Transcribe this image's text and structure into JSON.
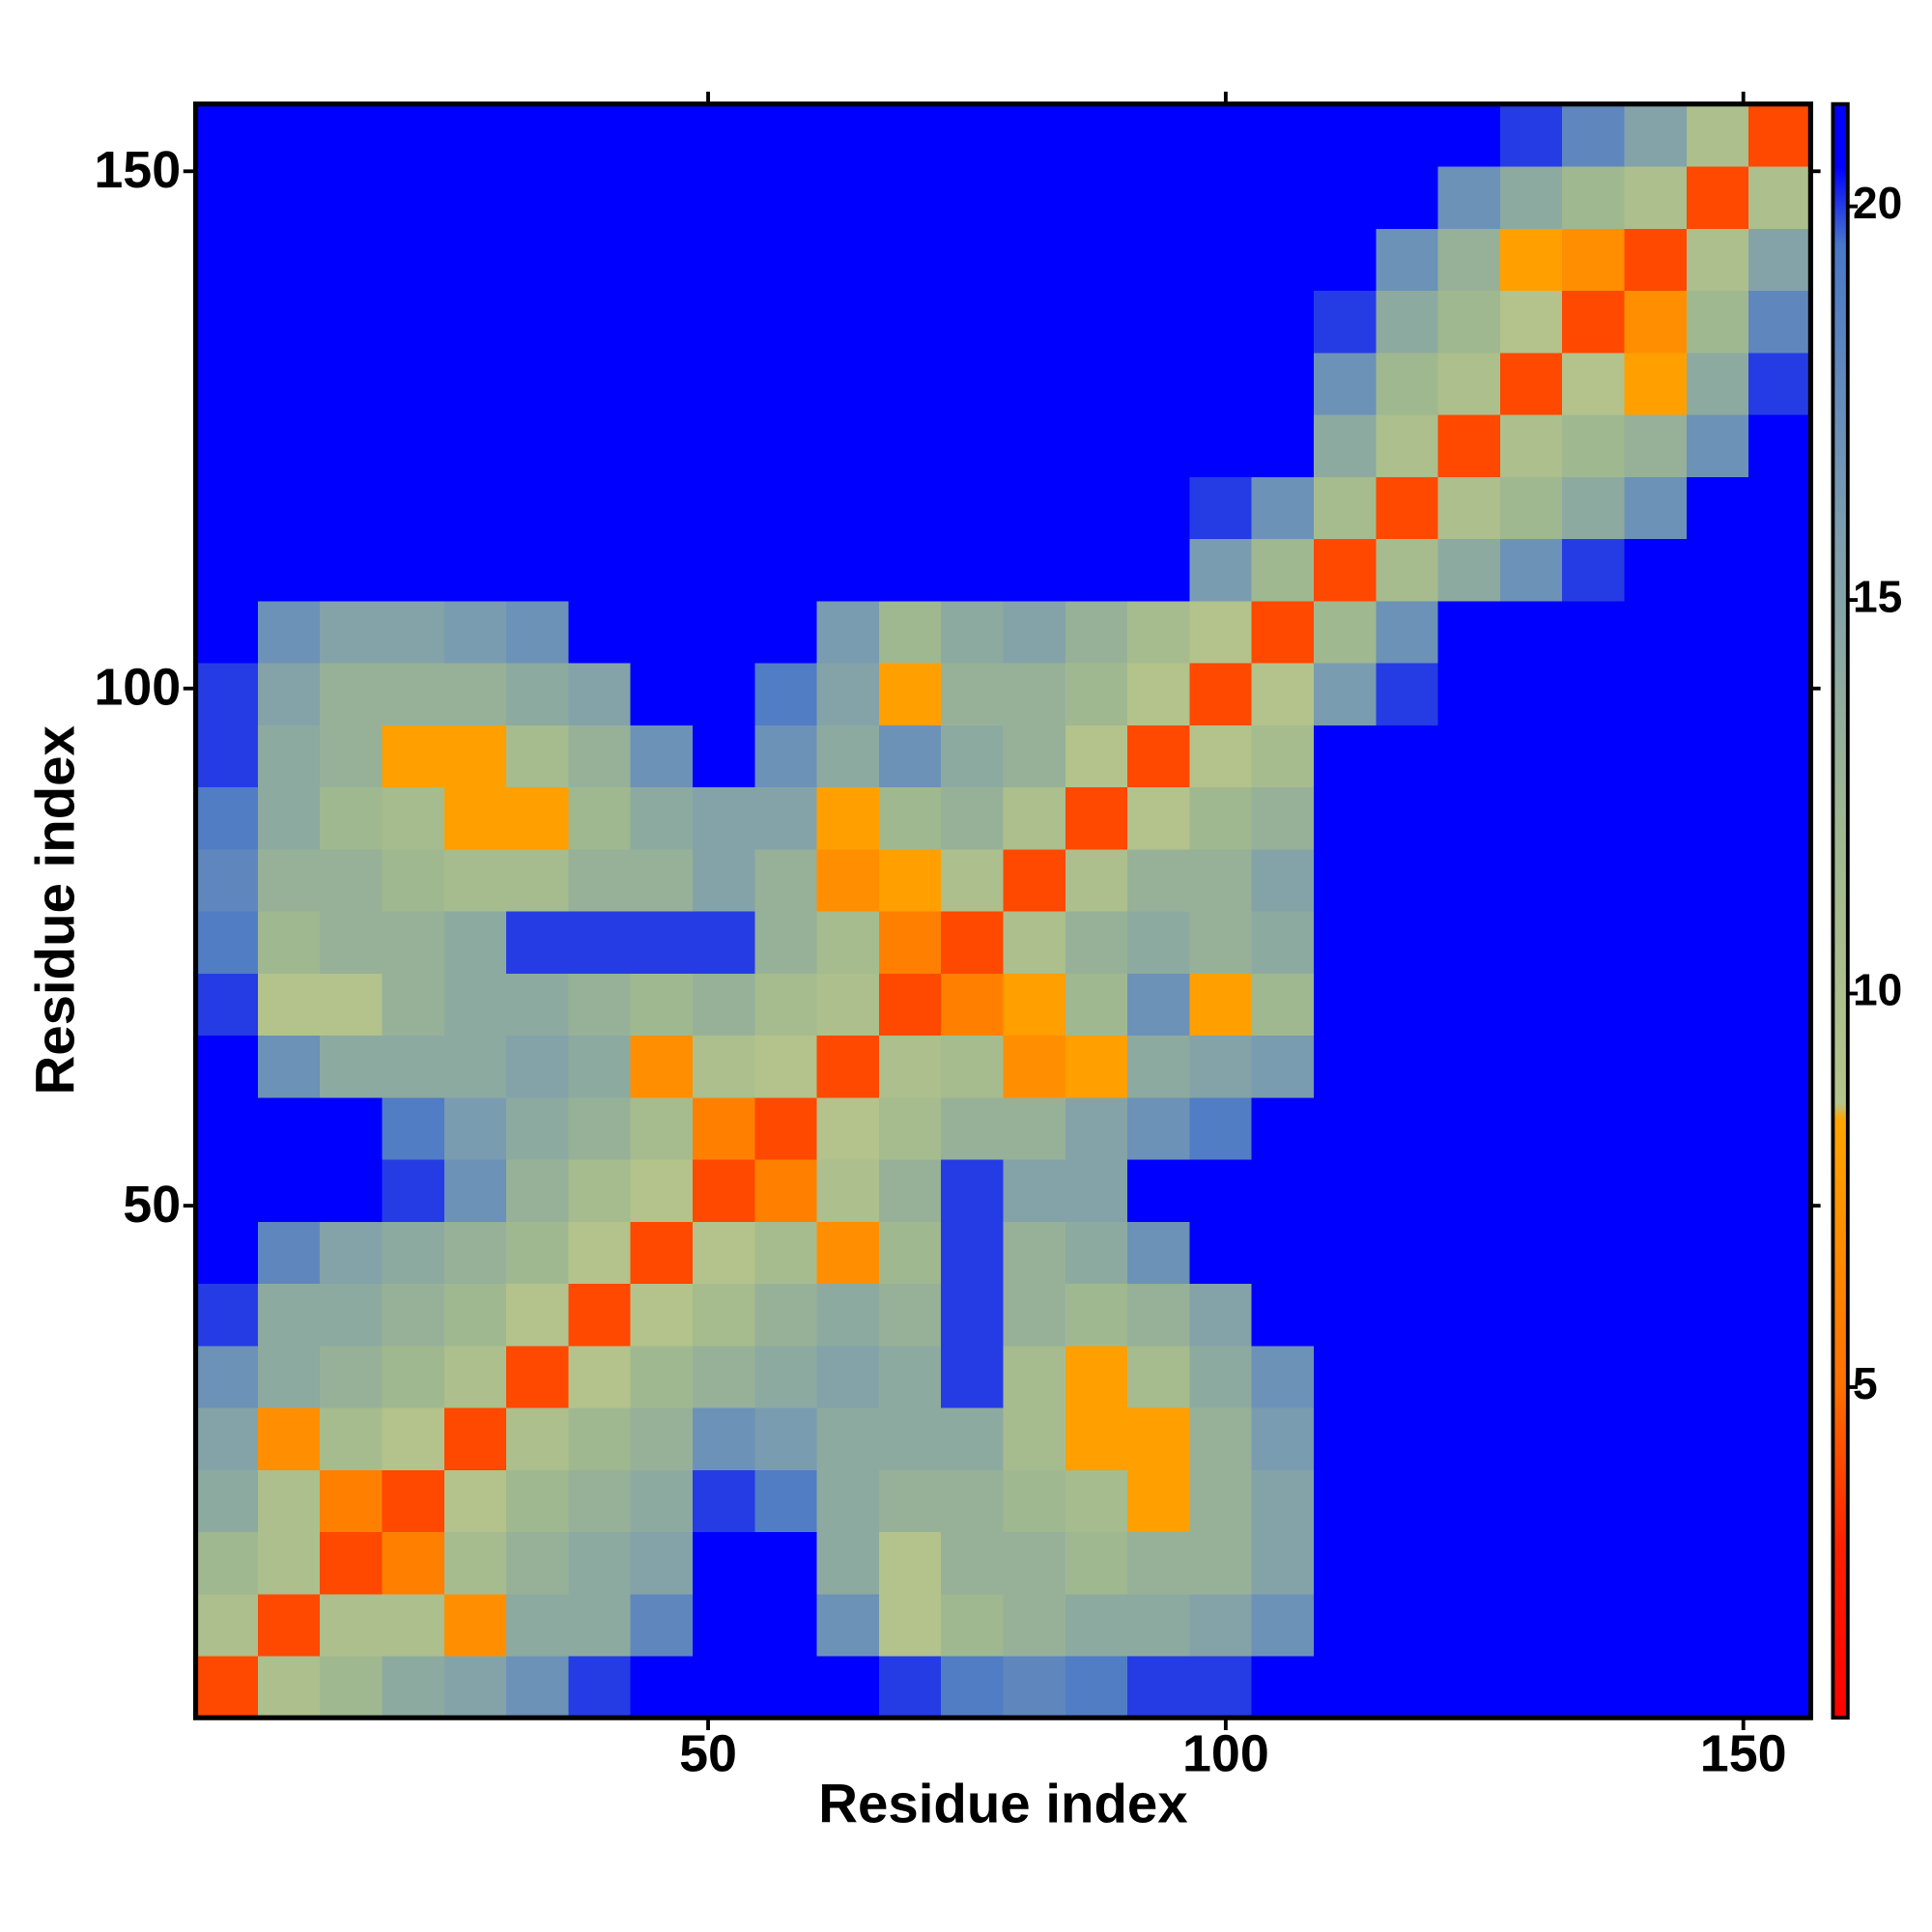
{
  "chart_data": {
    "type": "heatmap",
    "xlabel": "Residue index",
    "ylabel": "Residue index",
    "xlim": [
      0.5,
      156.5
    ],
    "ylim": [
      0.5,
      156.5
    ],
    "xticks": [
      50,
      100,
      150
    ],
    "yticks": [
      50,
      100,
      150
    ],
    "xbins": [
      0.5,
      6.5,
      12.5,
      18.5,
      24.5,
      30.5,
      36.5,
      42.5,
      48.5,
      54.5,
      60.5,
      66.5,
      72.5,
      78.5,
      84.5,
      90.5,
      96.5,
      102.5,
      108.5,
      114.5,
      120.5,
      126.5,
      132.5,
      138.5,
      144.5,
      150.5,
      156.5
    ],
    "ybins": [
      0.5,
      6.5,
      12.5,
      18.5,
      24.5,
      30.5,
      36.5,
      42.5,
      48.5,
      54.5,
      60.5,
      66.5,
      72.5,
      78.5,
      84.5,
      90.5,
      96.5,
      102.5,
      108.5,
      114.5,
      120.5,
      126.5,
      132.5,
      138.5,
      144.5,
      150.5,
      156.5
    ],
    "z": [
      [
        4,
        10,
        12,
        14,
        15,
        17,
        20,
        21,
        21,
        21,
        21,
        20,
        19,
        18,
        19,
        20,
        20,
        21,
        21,
        21,
        21,
        21,
        21,
        21,
        21,
        21
      ],
      [
        10,
        4,
        10,
        10,
        7,
        14,
        14,
        18,
        21,
        21,
        17,
        9,
        12,
        13,
        14,
        14,
        15,
        17,
        21,
        21,
        21,
        21,
        21,
        21,
        21,
        21
      ],
      [
        12,
        10,
        4,
        6,
        11,
        13,
        14,
        15,
        21,
        21,
        14,
        9,
        13,
        13,
        12,
        13,
        13,
        15,
        21,
        21,
        21,
        21,
        21,
        21,
        21,
        21
      ],
      [
        14,
        10,
        6,
        4,
        9,
        12,
        13,
        14,
        20,
        19,
        14,
        13,
        13,
        12,
        11,
        8,
        13,
        15,
        21,
        21,
        21,
        21,
        21,
        21,
        21,
        21
      ],
      [
        15,
        7,
        11,
        9,
        4,
        10,
        12,
        13,
        17,
        16,
        14,
        14,
        14,
        11,
        8,
        8,
        13,
        16,
        21,
        21,
        21,
        21,
        21,
        21,
        21,
        21
      ],
      [
        17,
        14,
        13,
        12,
        10,
        4,
        9,
        12,
        13,
        14,
        15,
        14,
        20,
        11,
        8,
        11,
        14,
        17,
        21,
        21,
        21,
        21,
        21,
        21,
        21,
        21
      ],
      [
        20,
        14,
        14,
        13,
        12,
        9,
        4,
        9,
        11,
        13,
        14,
        13,
        20,
        13,
        12,
        13,
        15,
        21,
        21,
        21,
        21,
        21,
        21,
        21,
        21,
        21
      ],
      [
        21,
        18,
        15,
        14,
        13,
        12,
        9,
        4,
        9,
        11,
        7,
        12,
        20,
        13,
        14,
        17,
        21,
        21,
        21,
        21,
        21,
        21,
        21,
        21,
        21,
        21
      ],
      [
        21,
        21,
        21,
        20,
        17,
        13,
        11,
        9,
        4,
        6,
        10,
        13,
        20,
        15,
        15,
        21,
        21,
        21,
        21,
        21,
        21,
        21,
        21,
        21,
        21,
        21
      ],
      [
        21,
        21,
        21,
        19,
        16,
        14,
        13,
        11,
        6,
        4,
        9,
        11,
        13,
        13,
        15,
        17,
        19,
        21,
        21,
        21,
        21,
        21,
        21,
        21,
        21,
        21
      ],
      [
        21,
        17,
        14,
        14,
        14,
        15,
        14,
        7,
        10,
        9,
        4,
        10,
        11,
        7,
        8,
        14,
        15,
        16,
        21,
        21,
        21,
        21,
        21,
        21,
        21,
        21
      ],
      [
        20,
        9,
        9,
        13,
        14,
        14,
        13,
        12,
        13,
        11,
        10,
        4,
        6,
        8,
        12,
        17,
        8,
        12,
        21,
        21,
        21,
        21,
        21,
        21,
        21,
        21
      ],
      [
        19,
        12,
        13,
        13,
        14,
        20,
        20,
        20,
        20,
        13,
        11,
        6,
        4,
        10,
        13,
        14,
        13,
        14,
        21,
        21,
        21,
        21,
        21,
        21,
        21,
        21
      ],
      [
        18,
        13,
        13,
        12,
        11,
        11,
        13,
        13,
        15,
        13,
        7,
        8,
        10,
        4,
        10,
        13,
        13,
        15,
        21,
        21,
        21,
        21,
        21,
        21,
        21,
        21
      ],
      [
        19,
        14,
        12,
        11,
        8,
        8,
        12,
        14,
        15,
        15,
        8,
        12,
        13,
        10,
        4,
        9,
        12,
        13,
        21,
        21,
        21,
        21,
        21,
        21,
        21,
        21
      ],
      [
        20,
        14,
        13,
        8,
        8,
        11,
        13,
        17,
        21,
        17,
        14,
        17,
        14,
        13,
        9,
        4,
        9,
        11,
        21,
        21,
        21,
        21,
        21,
        21,
        21,
        21
      ],
      [
        20,
        15,
        13,
        13,
        13,
        14,
        15,
        21,
        21,
        19,
        15,
        8,
        13,
        13,
        12,
        9,
        4,
        9,
        16,
        20,
        21,
        21,
        21,
        21,
        21,
        21
      ],
      [
        21,
        17,
        15,
        15,
        16,
        17,
        21,
        21,
        21,
        21,
        16,
        12,
        14,
        15,
        13,
        11,
        9,
        4,
        12,
        17,
        21,
        21,
        21,
        21,
        21,
        21
      ],
      [
        21,
        21,
        21,
        21,
        21,
        21,
        21,
        21,
        21,
        21,
        21,
        21,
        21,
        21,
        21,
        21,
        16,
        12,
        4,
        11,
        14,
        17,
        20,
        21,
        21,
        21
      ],
      [
        21,
        21,
        21,
        21,
        21,
        21,
        21,
        21,
        21,
        21,
        21,
        21,
        21,
        21,
        21,
        21,
        20,
        17,
        11,
        4,
        10,
        12,
        14,
        17,
        21,
        21
      ],
      [
        21,
        21,
        21,
        21,
        21,
        21,
        21,
        21,
        21,
        21,
        21,
        21,
        21,
        21,
        21,
        21,
        21,
        21,
        14,
        10,
        4,
        10,
        12,
        13,
        17,
        21
      ],
      [
        21,
        21,
        21,
        21,
        21,
        21,
        21,
        21,
        21,
        21,
        21,
        21,
        21,
        21,
        21,
        21,
        21,
        21,
        17,
        12,
        10,
        4,
        9,
        8,
        14,
        20
      ],
      [
        21,
        21,
        21,
        21,
        21,
        21,
        21,
        21,
        21,
        21,
        21,
        21,
        21,
        21,
        21,
        21,
        21,
        21,
        20,
        14,
        12,
        9,
        4,
        7,
        12,
        18
      ],
      [
        21,
        21,
        21,
        21,
        21,
        21,
        21,
        21,
        21,
        21,
        21,
        21,
        21,
        21,
        21,
        21,
        21,
        21,
        21,
        17,
        13,
        8,
        7,
        4,
        10,
        15
      ],
      [
        21,
        21,
        21,
        21,
        21,
        21,
        21,
        21,
        21,
        21,
        21,
        21,
        21,
        21,
        21,
        21,
        21,
        21,
        21,
        21,
        17,
        14,
        12,
        10,
        4,
        10
      ],
      [
        21,
        21,
        21,
        21,
        21,
        21,
        21,
        21,
        21,
        21,
        21,
        21,
        21,
        21,
        21,
        21,
        21,
        21,
        21,
        21,
        21,
        20,
        18,
        15,
        10,
        4
      ]
    ],
    "zlim": [
      0.8,
      21.3
    ],
    "zticks": [
      5,
      10,
      15,
      20
    ],
    "colorscale": [
      [
        0.8,
        "#ff0000"
      ],
      [
        3,
        "#ff2000"
      ],
      [
        5,
        "#ff7000"
      ],
      [
        8.4,
        "#ffa500"
      ],
      [
        8.6,
        "#b5c48a"
      ],
      [
        12,
        "#a0b890"
      ],
      [
        16,
        "#7a9cb0"
      ],
      [
        19.5,
        "#4a78c8"
      ],
      [
        20.5,
        "#0000ff"
      ],
      [
        21.3,
        "#0000ff"
      ]
    ]
  }
}
